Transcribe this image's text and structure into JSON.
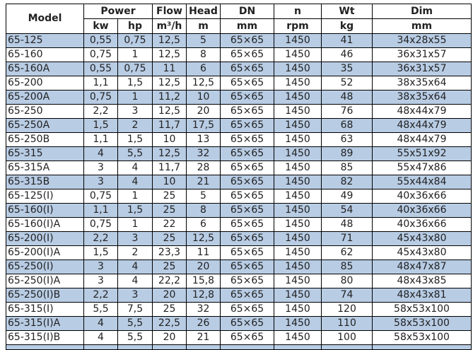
{
  "colors": {
    "alt_row": "#b8cce4",
    "border": "#000000"
  },
  "header": {
    "model": "Model",
    "power": "Power",
    "flow": "Flow",
    "head": "Head",
    "dn": "DN",
    "n": "n",
    "wt": "Wt",
    "dim": "Dim",
    "units": [
      "kw",
      "hp",
      "m³/h",
      "m",
      "mm",
      "rpm",
      "kg",
      "mm"
    ]
  },
  "rows": [
    [
      "65-125",
      "0,55",
      "0,75",
      "12,5",
      "5",
      "65×65",
      "1450",
      "41",
      "34x28x55"
    ],
    [
      "65-160",
      "0,75",
      "1",
      "12,5",
      "8",
      "65×65",
      "1450",
      "46",
      "36x31x57"
    ],
    [
      "65-160A",
      "0,55",
      "0,75",
      "11",
      "6",
      "65×65",
      "1450",
      "35",
      "36x31x57"
    ],
    [
      "65-200",
      "1,1",
      "1,5",
      "12,5",
      "12,5",
      "65×65",
      "1450",
      "52",
      "38x35x64"
    ],
    [
      "65-200A",
      "0,75",
      "1",
      "11,2",
      "10",
      "65×65",
      "1450",
      "48",
      "38x35x64"
    ],
    [
      "65-250",
      "2,2",
      "3",
      "12,5",
      "20",
      "65×65",
      "1450",
      "76",
      "48x44x79"
    ],
    [
      "65-250A",
      "1,5",
      "2",
      "11,7",
      "17,5",
      "65×65",
      "1450",
      "68",
      "48x44x79"
    ],
    [
      "65-250B",
      "1,1",
      "1,5",
      "10",
      "13",
      "65×65",
      "1450",
      "63",
      "48x44x79"
    ],
    [
      "65-315",
      "4",
      "5,5",
      "12,5",
      "32",
      "65×65",
      "1450",
      "89",
      "55x51x92"
    ],
    [
      "65-315A",
      "3",
      "4",
      "11,7",
      "28",
      "65×65",
      "1450",
      "85",
      "55x47x86"
    ],
    [
      "65-315B",
      "3",
      "4",
      "10",
      "21",
      "65×65",
      "1450",
      "82",
      "55x44x84"
    ],
    [
      "65-125(I)",
      "0,75",
      "1",
      "25",
      "5",
      "65×65",
      "1450",
      "49",
      "40x36x66"
    ],
    [
      "65-160(I)",
      "1,1",
      "1,5",
      "25",
      "8",
      "65×65",
      "1450",
      "54",
      "40x36x66"
    ],
    [
      "65-160(I)A",
      "0,75",
      "1",
      "22",
      "6",
      "65×65",
      "1450",
      "48",
      "40x36x66"
    ],
    [
      "65-200(I)",
      "2,2",
      "3",
      "25",
      "12,5",
      "65×65",
      "1450",
      "71",
      "45x43x80"
    ],
    [
      "65-200(I)A",
      "1,5",
      "2",
      "23,3",
      "11",
      "65×65",
      "1450",
      "62",
      "45x43x80"
    ],
    [
      "65-250(I)",
      "3",
      "4",
      "25",
      "20",
      "65×65",
      "1450",
      "85",
      "48x47x87"
    ],
    [
      "65-250(I)A",
      "3",
      "4",
      "22,2",
      "15,8",
      "65×65",
      "1450",
      "80",
      "48x43x85"
    ],
    [
      "65-250(I)B",
      "2,2",
      "3",
      "20",
      "12,8",
      "65×65",
      "1450",
      "74",
      "48x43x81"
    ],
    [
      "65-315(I)",
      "5,5",
      "7,5",
      "25",
      "32",
      "65×65",
      "1450",
      "120",
      "58x53x100"
    ],
    [
      "65-315(I)A",
      "4",
      "5,5",
      "22,5",
      "26",
      "65×65",
      "1450",
      "110",
      "58x53x100"
    ],
    [
      "65-315(I)B",
      "4",
      "5,5",
      "20",
      "21",
      "65×65",
      "1450",
      "100",
      "58x53x100"
    ]
  ]
}
